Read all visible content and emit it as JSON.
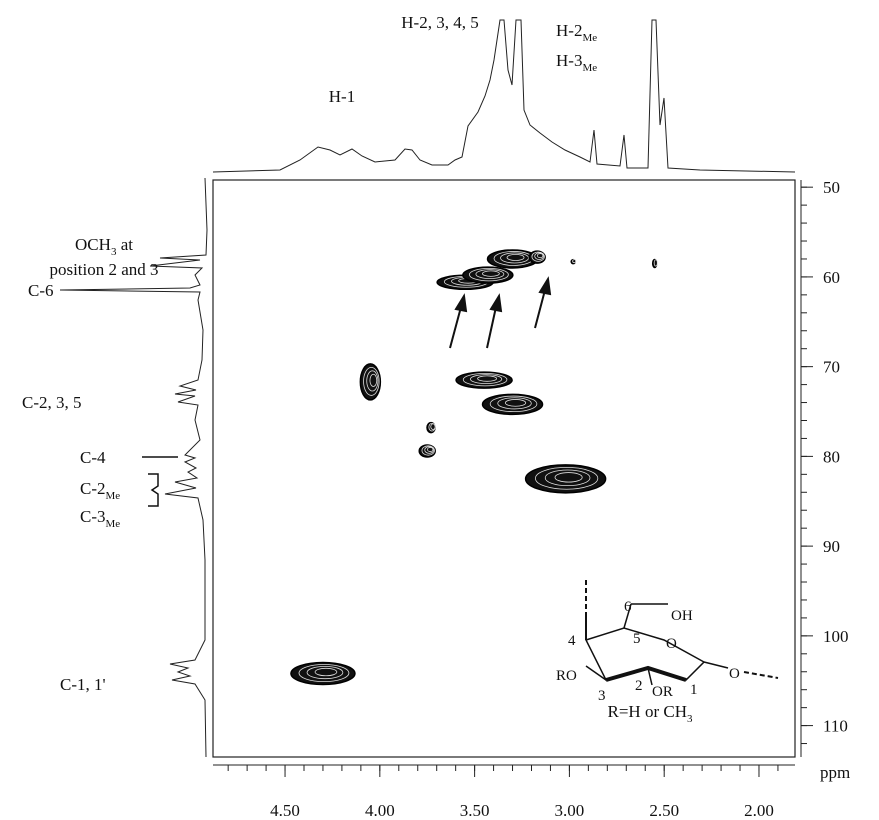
{
  "chart_data": {
    "type": "contour",
    "x_unit_label": "ppm",
    "xlim": [
      4.88,
      1.81
    ],
    "xticks": [
      {
        "value": 4.5,
        "label": "4.50"
      },
      {
        "value": 4.0,
        "label": "4.00"
      },
      {
        "value": 3.5,
        "label": "3.50"
      },
      {
        "value": 3.0,
        "label": "3.00"
      },
      {
        "value": 2.5,
        "label": "2.50"
      },
      {
        "value": 2.0,
        "label": "2.00"
      }
    ],
    "ylim": [
      49.2,
      113.5
    ],
    "yticks": [
      50,
      60,
      70,
      80,
      90,
      100,
      110
    ],
    "peaks": {
      "x": [
        3.55,
        3.43,
        3.3,
        3.17,
        4.05,
        3.45,
        3.3,
        3.73,
        3.75,
        3.02,
        4.3,
        2.98,
        2.55
      ],
      "y": [
        60.6,
        59.8,
        58.0,
        57.8,
        71.7,
        71.5,
        74.2,
        76.8,
        79.4,
        82.5,
        104.2,
        58.3,
        58.5
      ]
    },
    "top_annotations": [
      {
        "text": "H-1"
      },
      {
        "text": "H-2, 3, 4, 5"
      },
      {
        "text": "H-2",
        "sub": "Me"
      },
      {
        "text": "H-3",
        "sub": "Me"
      }
    ],
    "left_annotations": [
      {
        "text": "OCH",
        "sub": "3",
        "tail": " at"
      },
      {
        "text": "position 2 and 3"
      },
      {
        "text": "C-6"
      },
      {
        "text": "C-2, 3, 5"
      },
      {
        "text": "C-4"
      },
      {
        "text": "C-2",
        "sub": "Me"
      },
      {
        "text": "C-3",
        "sub": "Me"
      },
      {
        "text": "C-1, 1'"
      }
    ],
    "structure_labels": [
      "OH",
      "6",
      "5",
      "O",
      "4",
      "RO",
      "3",
      "2",
      "OR",
      "1",
      "O"
    ],
    "structure_caption": {
      "text": "R=H or CH",
      "sub": "3"
    }
  }
}
